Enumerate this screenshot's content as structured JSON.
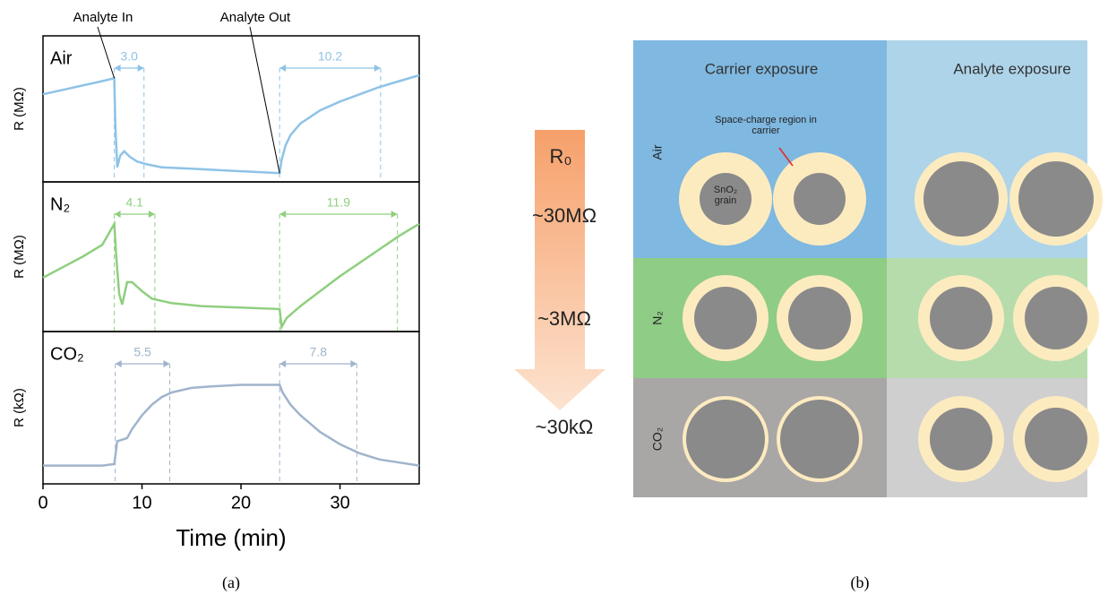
{
  "chart_data": [
    {
      "type": "line",
      "panel_label": "Air",
      "ylabel": "R (MΩ)",
      "xlim": [
        0,
        38
      ],
      "ylim": [
        0,
        1
      ],
      "color": "#8ec3e6",
      "annotations": [
        "Analyte In",
        "Analyte Out"
      ],
      "x": [
        0,
        2,
        4,
        6,
        7.2,
        7.3,
        7.5,
        7.8,
        8.2,
        8.8,
        9.5,
        10.5,
        12,
        15,
        18,
        21,
        23.9,
        24.1,
        24.5,
        25,
        26,
        28,
        30,
        32,
        34,
        36,
        38
      ],
      "values": [
        0.6,
        0.63,
        0.66,
        0.69,
        0.71,
        0.4,
        0.1,
        0.18,
        0.21,
        0.17,
        0.14,
        0.12,
        0.1,
        0.09,
        0.08,
        0.07,
        0.06,
        0.15,
        0.25,
        0.32,
        0.4,
        0.49,
        0.55,
        0.6,
        0.65,
        0.69,
        0.73
      ],
      "intervals": [
        {
          "start": 7.2,
          "end": 10.2,
          "label": "3.0"
        },
        {
          "start": 23.9,
          "end": 34.1,
          "label": "10.2"
        }
      ]
    },
    {
      "type": "line",
      "panel_label": "N₂",
      "ylabel": "R (MΩ)",
      "xlim": [
        0,
        38
      ],
      "ylim": [
        0,
        1
      ],
      "color": "#8fcf7f",
      "x": [
        0,
        2,
        4,
        6,
        7.2,
        7.4,
        7.7,
        8,
        8.5,
        9,
        10,
        11,
        13,
        16,
        20,
        23.9,
        24.1,
        24.6,
        26,
        28,
        30,
        32,
        34,
        36,
        38
      ],
      "values": [
        0.36,
        0.43,
        0.5,
        0.58,
        0.72,
        0.5,
        0.25,
        0.18,
        0.33,
        0.33,
        0.27,
        0.22,
        0.19,
        0.17,
        0.16,
        0.15,
        0.03,
        0.09,
        0.17,
        0.27,
        0.37,
        0.46,
        0.55,
        0.64,
        0.72
      ],
      "intervals": [
        {
          "start": 7.2,
          "end": 11.3,
          "label": "4.1"
        },
        {
          "start": 23.9,
          "end": 35.8,
          "label": "11.9"
        }
      ]
    },
    {
      "type": "line",
      "panel_label": "CO₂",
      "ylabel": "R (kΩ)",
      "xlabel": "Time (min)",
      "xlim": [
        0,
        38
      ],
      "ylim": [
        0,
        1
      ],
      "color": "#a0b4cc",
      "xticks": [
        0,
        10,
        20,
        30
      ],
      "x": [
        0,
        3,
        6,
        7.2,
        7.5,
        8,
        8.5,
        9,
        10,
        11,
        12,
        13,
        15,
        17,
        20,
        23.9,
        24.2,
        25,
        26,
        28,
        30,
        32,
        34,
        36,
        38
      ],
      "values": [
        0.12,
        0.12,
        0.12,
        0.13,
        0.28,
        0.29,
        0.3,
        0.36,
        0.45,
        0.52,
        0.57,
        0.6,
        0.63,
        0.64,
        0.65,
        0.65,
        0.6,
        0.52,
        0.45,
        0.34,
        0.26,
        0.2,
        0.16,
        0.14,
        0.12
      ],
      "intervals": [
        {
          "start": 7.3,
          "end": 12.8,
          "label": "5.5"
        },
        {
          "start": 23.9,
          "end": 31.7,
          "label": "7.8"
        }
      ]
    }
  ],
  "captions": [
    "(a)",
    "(b)"
  ],
  "diagram": {
    "arrow_label": "R₀",
    "resistances": [
      "~30MΩ",
      "~3MΩ",
      "~30kΩ"
    ],
    "columns": [
      "Carrier exposure",
      "Analyte exposure"
    ],
    "rows": [
      "Air",
      "N₂",
      "CO₂"
    ],
    "callout": "Space-charge region in carrier",
    "grain_label": "SnO₂ grain"
  }
}
